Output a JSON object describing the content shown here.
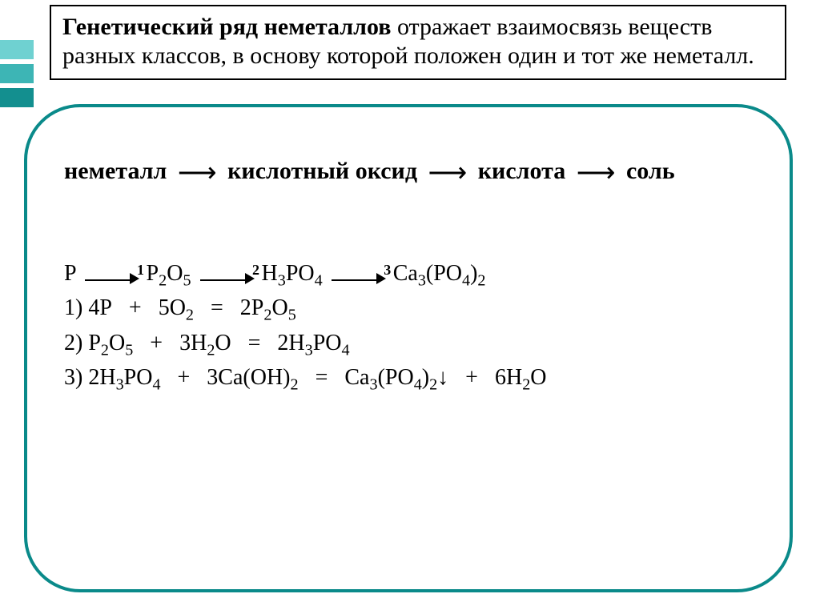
{
  "colors": {
    "frame": "#0a8a8a",
    "bar1": "#6fd1d1",
    "bar2": "#3db5b5",
    "bar3": "#138f8f",
    "text": "#000000",
    "box_border": "#000000",
    "background": "#ffffff"
  },
  "definition": {
    "bold_part": "Генетический ряд неметаллов",
    "rest": " отражает взаи­мосвязь веществ разных классов, в основу ко­торой положен один и тот же неметалл.",
    "fontsize": 30
  },
  "chain": {
    "items": [
      "неметалл",
      "кислотный оксид",
      "кислота",
      "соль"
    ],
    "arrow": "→",
    "fontsize": 30
  },
  "scheme": {
    "steps": [
      "P",
      "P₂O₅",
      "H₃PO₄",
      "Ca₃(PO₄)₂"
    ],
    "step_numbers": [
      "1",
      "2",
      "3"
    ]
  },
  "equations": {
    "eq1_label": "1)",
    "eq1": "4P   +   5O₂   =   2P₂O₅",
    "eq2_label": "2)",
    "eq2": "P₂O₅   +   3H₂O   =   2H₃PO₄",
    "eq3_label": "3)",
    "eq3": "2H₃PO₄   +   3Ca(OH)₂   =   Ca₃(PO₄)₂↓   +   6H₂O"
  }
}
